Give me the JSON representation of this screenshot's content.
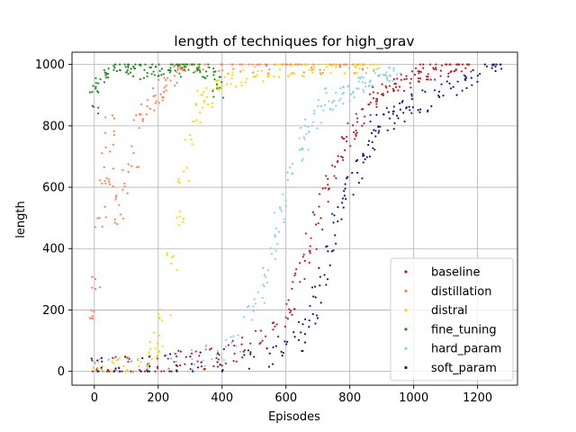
{
  "chart_data": {
    "type": "scatter",
    "title": "length of techniques for high_grav",
    "xlabel": "Episodes",
    "ylabel": "length",
    "xlim": [
      -70,
      1325
    ],
    "ylim": [
      -45,
      1040
    ],
    "xticks": [
      0,
      200,
      400,
      600,
      800,
      1000,
      1200
    ],
    "yticks": [
      0,
      200,
      400,
      600,
      800,
      1000
    ],
    "grid": true,
    "legend_position": "lower-right",
    "series": [
      {
        "name": "baseline",
        "color": "#b22222",
        "points": [
          [
            10,
            5
          ],
          [
            40,
            6
          ],
          [
            80,
            8
          ],
          [
            120,
            10
          ],
          [
            160,
            12
          ],
          [
            200,
            15
          ],
          [
            240,
            20
          ],
          [
            280,
            28
          ],
          [
            320,
            35
          ],
          [
            360,
            45
          ],
          [
            400,
            55
          ],
          [
            440,
            65
          ],
          [
            480,
            80
          ],
          [
            520,
            100
          ],
          [
            560,
            120
          ],
          [
            600,
            180
          ],
          [
            620,
            230
          ],
          [
            640,
            300
          ],
          [
            660,
            380
          ],
          [
            680,
            430
          ],
          [
            700,
            500
          ],
          [
            720,
            560
          ],
          [
            740,
            620
          ],
          [
            760,
            680
          ],
          [
            780,
            730
          ],
          [
            800,
            770
          ],
          [
            820,
            800
          ],
          [
            840,
            840
          ],
          [
            860,
            870
          ],
          [
            880,
            890
          ],
          [
            900,
            900
          ],
          [
            920,
            910
          ],
          [
            940,
            930
          ],
          [
            960,
            940
          ],
          [
            980,
            950
          ],
          [
            1000,
            960
          ],
          [
            1020,
            970
          ],
          [
            1040,
            975
          ],
          [
            1060,
            980
          ],
          [
            1080,
            985
          ],
          [
            1100,
            990
          ],
          [
            1120,
            990
          ],
          [
            1140,
            995
          ],
          [
            1160,
            1000
          ]
        ]
      },
      {
        "name": "distillation",
        "color": "#ff7f50",
        "points": [
          [
            0,
            200
          ],
          [
            10,
            300
          ],
          [
            20,
            500
          ],
          [
            30,
            600
          ],
          [
            40,
            700
          ],
          [
            50,
            800
          ],
          [
            60,
            600
          ],
          [
            80,
            510
          ],
          [
            100,
            620
          ],
          [
            120,
            700
          ],
          [
            140,
            800
          ],
          [
            160,
            850
          ],
          [
            180,
            880
          ],
          [
            200,
            900
          ],
          [
            220,
            930
          ],
          [
            240,
            960
          ],
          [
            260,
            990
          ],
          [
            280,
            1000
          ],
          [
            300,
            1000
          ],
          [
            340,
            1000
          ],
          [
            400,
            1000
          ],
          [
            450,
            1000
          ],
          [
            500,
            1000
          ],
          [
            550,
            1000
          ],
          [
            600,
            1000
          ],
          [
            650,
            1000
          ],
          [
            700,
            1000
          ],
          [
            750,
            1000
          ],
          [
            800,
            1000
          ],
          [
            830,
            1000
          ]
        ]
      },
      {
        "name": "distral",
        "color": "#ffd700",
        "points": [
          [
            10,
            5
          ],
          [
            40,
            8
          ],
          [
            80,
            12
          ],
          [
            120,
            20
          ],
          [
            160,
            40
          ],
          [
            180,
            70
          ],
          [
            200,
            100
          ],
          [
            220,
            200
          ],
          [
            240,
            350
          ],
          [
            260,
            500
          ],
          [
            280,
            650
          ],
          [
            300,
            780
          ],
          [
            320,
            850
          ],
          [
            340,
            890
          ],
          [
            360,
            900
          ],
          [
            380,
            920
          ],
          [
            400,
            940
          ],
          [
            440,
            950
          ],
          [
            480,
            960
          ],
          [
            520,
            970
          ],
          [
            560,
            980
          ],
          [
            600,
            985
          ],
          [
            640,
            990
          ],
          [
            680,
            995
          ],
          [
            720,
            995
          ],
          [
            760,
            1000
          ],
          [
            800,
            1000
          ],
          [
            840,
            1000
          ],
          [
            880,
            1000
          ]
        ]
      },
      {
        "name": "fine_tuning",
        "color": "#228b22",
        "points": [
          [
            0,
            870
          ],
          [
            10,
            920
          ],
          [
            20,
            960
          ],
          [
            40,
            980
          ],
          [
            60,
            990
          ],
          [
            80,
            995
          ],
          [
            100,
            1000
          ],
          [
            120,
            990
          ],
          [
            140,
            980
          ],
          [
            160,
            985
          ],
          [
            180,
            990
          ],
          [
            200,
            995
          ],
          [
            220,
            990
          ],
          [
            240,
            1000
          ],
          [
            260,
            995
          ],
          [
            280,
            990
          ],
          [
            300,
            995
          ],
          [
            320,
            990
          ],
          [
            340,
            985
          ],
          [
            360,
            980
          ],
          [
            380,
            960
          ],
          [
            390,
            920
          ]
        ]
      },
      {
        "name": "hard_param",
        "color": "#87ceeb",
        "points": [
          [
            10,
            5
          ],
          [
            60,
            8
          ],
          [
            120,
            12
          ],
          [
            180,
            15
          ],
          [
            240,
            20
          ],
          [
            300,
            30
          ],
          [
            360,
            50
          ],
          [
            400,
            70
          ],
          [
            440,
            100
          ],
          [
            480,
            180
          ],
          [
            520,
            260
          ],
          [
            540,
            320
          ],
          [
            560,
            400
          ],
          [
            580,
            480
          ],
          [
            600,
            560
          ],
          [
            620,
            640
          ],
          [
            640,
            700
          ],
          [
            660,
            760
          ],
          [
            680,
            800
          ],
          [
            700,
            840
          ],
          [
            720,
            870
          ],
          [
            740,
            890
          ],
          [
            760,
            900
          ],
          [
            780,
            910
          ],
          [
            800,
            920
          ],
          [
            820,
            930
          ],
          [
            840,
            940
          ],
          [
            860,
            950
          ],
          [
            880,
            960
          ],
          [
            900,
            965
          ],
          [
            920,
            970
          ],
          [
            940,
            975
          ]
        ]
      },
      {
        "name": "soft_param",
        "color": "#191970",
        "points": [
          [
            10,
            5
          ],
          [
            80,
            8
          ],
          [
            160,
            12
          ],
          [
            240,
            18
          ],
          [
            320,
            25
          ],
          [
            400,
            35
          ],
          [
            480,
            45
          ],
          [
            560,
            55
          ],
          [
            600,
            65
          ],
          [
            640,
            90
          ],
          [
            660,
            130
          ],
          [
            680,
            180
          ],
          [
            700,
            240
          ],
          [
            720,
            320
          ],
          [
            740,
            400
          ],
          [
            760,
            480
          ],
          [
            780,
            550
          ],
          [
            800,
            600
          ],
          [
            820,
            650
          ],
          [
            840,
            700
          ],
          [
            860,
            740
          ],
          [
            880,
            780
          ],
          [
            900,
            800
          ],
          [
            920,
            820
          ],
          [
            940,
            840
          ],
          [
            960,
            850
          ],
          [
            980,
            860
          ],
          [
            1000,
            870
          ],
          [
            1040,
            880
          ],
          [
            1080,
            900
          ],
          [
            1120,
            920
          ],
          [
            1160,
            940
          ],
          [
            1200,
            960
          ],
          [
            1240,
            990
          ],
          [
            1265,
            1000
          ]
        ]
      }
    ]
  }
}
